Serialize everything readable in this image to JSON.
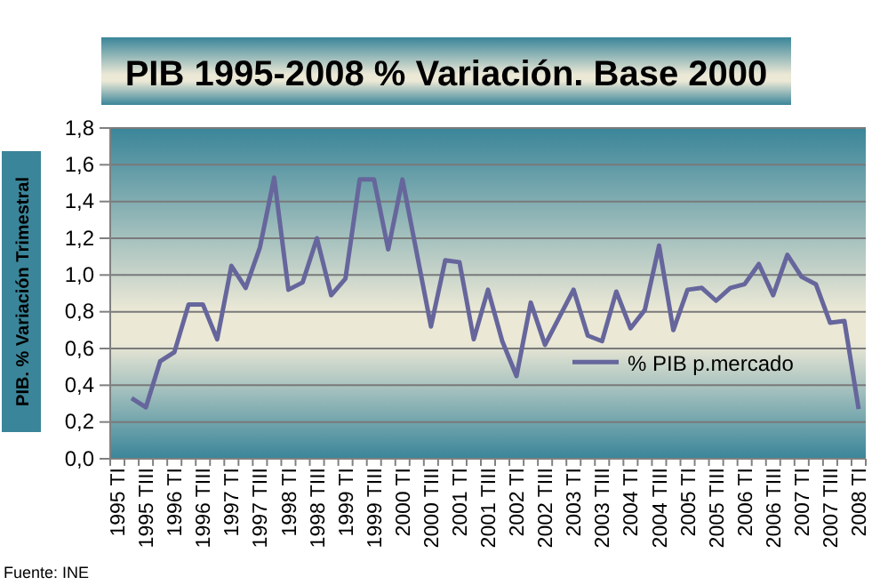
{
  "chart_data": {
    "type": "line",
    "title": "PIB 1995-2008 % Variación. Base 2000",
    "ylabel": "PIB. % Variación Trimestral",
    "annotations": [
      "Fuente: INE"
    ],
    "categories": [
      "1995 TI",
      null,
      "1995 TIII",
      null,
      "1996 TI",
      null,
      "1996 TIII",
      null,
      "1997 TI",
      null,
      "1997 TIII",
      null,
      "1998 TI",
      null,
      "1998 TIII",
      null,
      "1999 TI",
      null,
      "1999 TIII",
      null,
      "2000 TI",
      null,
      "2000 TIII",
      null,
      "2001 TI",
      null,
      "2001 TIII",
      null,
      "2002 TI",
      null,
      "2002 TIII",
      null,
      "2003 TI",
      null,
      "2003 TIII",
      null,
      "2004 TI",
      null,
      "2004 TIII",
      null,
      "2005 TI",
      null,
      "2005 TIII",
      null,
      "2006 TI",
      null,
      "2006 TIII",
      null,
      "2007 TI",
      null,
      "2007 TIII",
      null,
      "2008 TI"
    ],
    "series": [
      {
        "name": "% PIB p.mercado",
        "color": "#66669c",
        "values": [
          null,
          0.33,
          0.28,
          0.53,
          0.58,
          0.84,
          0.84,
          0.65,
          1.05,
          0.93,
          1.15,
          1.53,
          0.92,
          0.96,
          1.2,
          0.89,
          0.98,
          1.52,
          1.52,
          1.14,
          1.52,
          1.12,
          0.72,
          1.08,
          1.07,
          0.65,
          0.92,
          0.64,
          0.45,
          0.85,
          0.62,
          0.77,
          0.92,
          0.67,
          0.64,
          0.91,
          0.71,
          0.81,
          1.16,
          0.7,
          0.92,
          0.93,
          0.86,
          0.93,
          0.95,
          1.06,
          0.89,
          1.11,
          0.99,
          0.95,
          0.74,
          0.75,
          0.27
        ]
      }
    ],
    "ylim": [
      0,
      1.8
    ],
    "yticks": [
      {
        "value": 0,
        "label": "0,0"
      },
      {
        "value": 0.2,
        "label": "0,2"
      },
      {
        "value": 0.4,
        "label": "0,4"
      },
      {
        "value": 0.6,
        "label": "0,6"
      },
      {
        "value": 0.8,
        "label": "0,8"
      },
      {
        "value": 1,
        "label": "1,0"
      },
      {
        "value": 1.2,
        "label": "1,2"
      },
      {
        "value": 1.4,
        "label": "1,4"
      },
      {
        "value": 1.6,
        "label": "1,6"
      },
      {
        "value": 1.8,
        "label": "1,8"
      }
    ],
    "grid": "y",
    "legend": "bottom right",
    "marker": "none",
    "line_style": "solid"
  }
}
